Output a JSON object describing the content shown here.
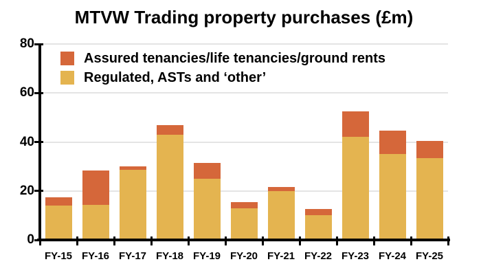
{
  "title": {
    "text": "MTVW Trading property purchases (£m)"
  },
  "colors": {
    "assured": "#D5673A",
    "regulated": "#E4B450",
    "axis": "#000000",
    "gridline": "#E4E4E4",
    "text": "#000000",
    "background": "#FFFFFF"
  },
  "legend": {
    "items": [
      {
        "label": "Assured tenancies/life tenancies/ground rents",
        "series": "assured",
        "color": "#D5673A"
      },
      {
        "label": "Regulated, ASTs and ‘other’",
        "series": "regulated",
        "color": "#E4B450"
      }
    ]
  },
  "chart_data": {
    "type": "bar",
    "stacked": true,
    "title": "MTVW Trading property purchases (£m)",
    "categories": [
      "FY-15",
      "FY-16",
      "FY-17",
      "FY-18",
      "FY-19",
      "FY-20",
      "FY-21",
      "FY-22",
      "FY-23",
      "FY-24",
      "FY-25"
    ],
    "series": [
      {
        "name": "Regulated, ASTs and ‘other’",
        "color": "#E4B450",
        "values": [
          14,
          14.2,
          28.5,
          43,
          25,
          13,
          20,
          10,
          42,
          35,
          33.5
        ]
      },
      {
        "name": "Assured tenancies/life tenancies/ground rents",
        "color": "#D5673A",
        "values": [
          3.5,
          14.1,
          1.5,
          4,
          6.5,
          2.5,
          1.5,
          2.5,
          10.5,
          9.5,
          7
        ]
      }
    ],
    "stack_totals": [
      17.5,
      28.3,
      30,
      47,
      31.5,
      15.5,
      21.5,
      12.5,
      52.5,
      44.5,
      40.5
    ],
    "xlabel": "",
    "ylabel": "",
    "ylim": [
      0,
      80
    ],
    "yticks": [
      0,
      20,
      40,
      60,
      80
    ],
    "grid": true,
    "legend_position": "top-left-inside"
  }
}
